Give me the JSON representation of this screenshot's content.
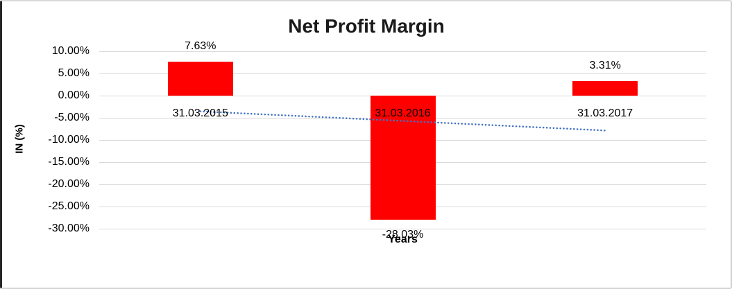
{
  "window": {
    "background": "#ffffff",
    "frame_left_color": "#262626",
    "frame_color": "#d9d9d9"
  },
  "chart_data": {
    "type": "bar",
    "title": "Net Profit Margin",
    "xlabel": "Years",
    "ylabel": "IN (%)",
    "categories": [
      "31.03.2015",
      "31.03.2016",
      "31.03.2017"
    ],
    "values": [
      7.63,
      -28.03,
      3.31
    ],
    "value_labels": [
      "7.63%",
      "-28.03%",
      "3.31%"
    ],
    "ylim": [
      -30,
      10
    ],
    "ytick_step": 5,
    "ytick_labels": [
      "10.00%",
      "5.00%",
      "0.00%",
      "-5.00%",
      "-10.00%",
      "-15.00%",
      "-20.00%",
      "-25.00%",
      "-30.00%"
    ],
    "grid": true,
    "legend": "none",
    "bar_color": "#ff0000",
    "gridline_color": "#d9d9d9",
    "text_color": "#000000",
    "trendline": {
      "style": "dotted",
      "color": "#4472c4",
      "start_value": -3.55,
      "end_value": -7.86
    }
  }
}
